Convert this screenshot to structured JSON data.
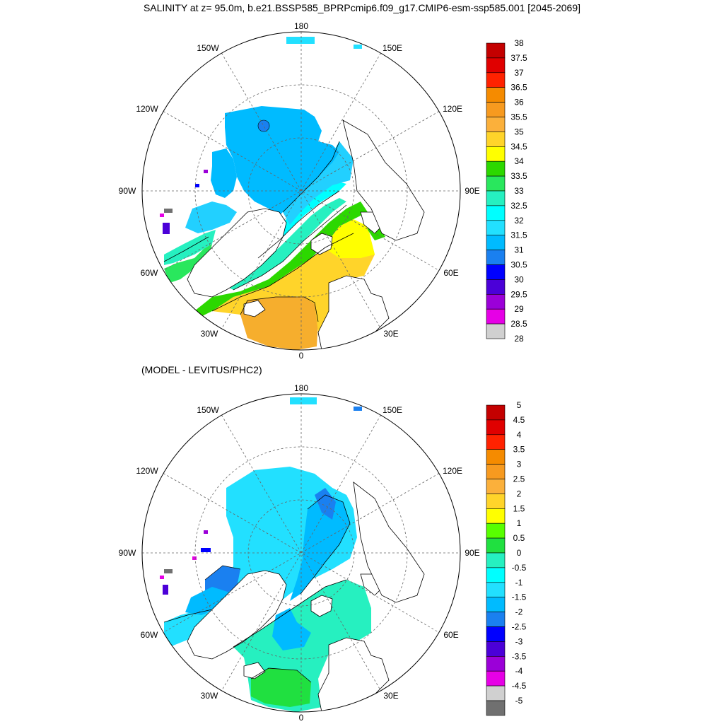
{
  "title": "SALINITY at z=  95.0m, b.e21.BSSP585_BPRPcmip6.f09_g17.CMIP6-esm-ssp585.001 [2045-2069]",
  "subtitle": "(MODEL - LEVITUS/PHC2)",
  "longitude_labels": [
    "180",
    "150E",
    "120E",
    "90E",
    "60E",
    "30E",
    "0",
    "30W",
    "60W",
    "90W",
    "120W",
    "150W"
  ],
  "panels": [
    {
      "name": "salinity",
      "colorbar": {
        "labels": [
          "38",
          "37.5",
          "37",
          "36.5",
          "36",
          "35.5",
          "35",
          "34.5",
          "34",
          "33.5",
          "33",
          "32.5",
          "32",
          "31.5",
          "31",
          "30.5",
          "30",
          "29.5",
          "29",
          "28.5",
          "28"
        ],
        "colors": [
          "#c40000",
          "#e00000",
          "#ff2200",
          "#f58b00",
          "#f79a1f",
          "#fbb03b",
          "#ffd42a",
          "#ffff00",
          "#2cd800",
          "#29e75d",
          "#26f0c0",
          "#00ffff",
          "#22e0ff",
          "#00bbff",
          "#1a80f0",
          "#0000ff",
          "#4b00d8",
          "#9b00d8",
          "#e600e6",
          "#d0d0d0"
        ]
      }
    },
    {
      "name": "difference",
      "colorbar": {
        "labels": [
          "5",
          "4.5",
          "4",
          "3.5",
          "3",
          "2.5",
          "2",
          "1.5",
          "1",
          "0.5",
          "0",
          "-0.5",
          "-1",
          "-1.5",
          "-2",
          "-2.5",
          "-3",
          "-3.5",
          "-4",
          "-4.5",
          "-5"
        ],
        "colors": [
          "#c40000",
          "#e00000",
          "#ff2200",
          "#f58b00",
          "#f79a1f",
          "#fbb03b",
          "#ffd42a",
          "#ffff00",
          "#58ff00",
          "#20e040",
          "#26f0c0",
          "#00ffff",
          "#22e0ff",
          "#00bbff",
          "#1a80f0",
          "#0000ff",
          "#4b00d8",
          "#9b00d8",
          "#e600e6",
          "#d0d0d0",
          "#707070"
        ]
      }
    }
  ]
}
